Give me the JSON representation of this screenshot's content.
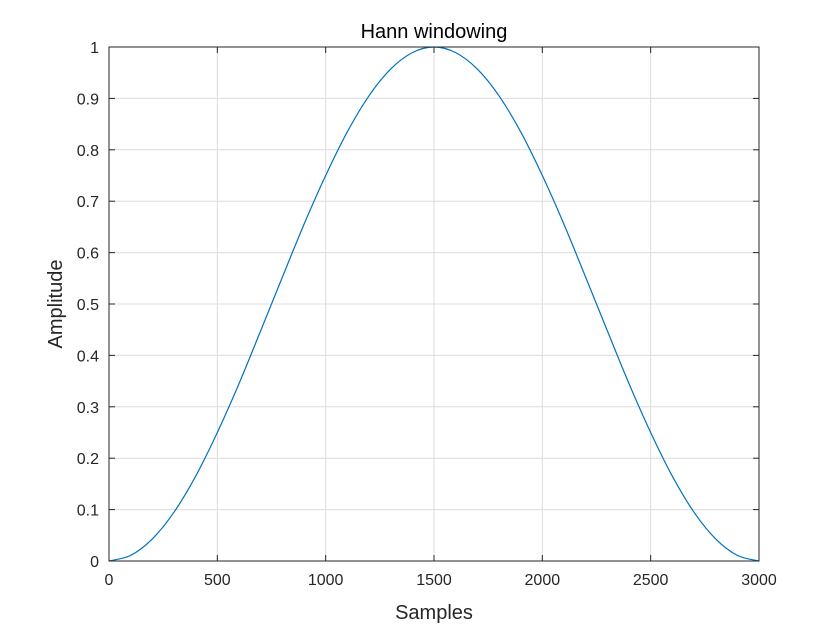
{
  "chart_data": {
    "type": "line",
    "title": "Hann windowing",
    "xlabel": "Samples",
    "ylabel": "Amplitude",
    "xlim": [
      0,
      3000
    ],
    "ylim": [
      0,
      1
    ],
    "x_ticks": [
      0,
      500,
      1000,
      1500,
      2000,
      2500,
      3000
    ],
    "y_ticks": [
      0,
      0.1,
      0.2,
      0.3,
      0.4,
      0.5,
      0.6,
      0.7,
      0.8,
      0.9,
      1
    ],
    "x_tick_labels": [
      "0",
      "500",
      "1000",
      "1500",
      "2000",
      "2500",
      "3000"
    ],
    "y_tick_labels": [
      "0",
      "0.1",
      "0.2",
      "0.3",
      "0.4",
      "0.5",
      "0.6",
      "0.7",
      "0.8",
      "0.9",
      "1"
    ],
    "grid": true,
    "series": [
      {
        "color": "#0072bd",
        "x": [
          0,
          100,
          200,
          300,
          400,
          500,
          600,
          700,
          800,
          900,
          1000,
          1100,
          1200,
          1300,
          1400,
          1500,
          1600,
          1700,
          1800,
          1900,
          2000,
          2100,
          2200,
          2300,
          2400,
          2500,
          2600,
          2700,
          2800,
          2900,
          3000
        ],
        "y": [
          0,
          0.011,
          0.043,
          0.095,
          0.165,
          0.25,
          0.345,
          0.448,
          0.552,
          0.655,
          0.75,
          0.835,
          0.905,
          0.957,
          0.989,
          1,
          0.989,
          0.957,
          0.905,
          0.835,
          0.75,
          0.655,
          0.552,
          0.448,
          0.345,
          0.25,
          0.165,
          0.095,
          0.043,
          0.011,
          0
        ]
      }
    ]
  }
}
